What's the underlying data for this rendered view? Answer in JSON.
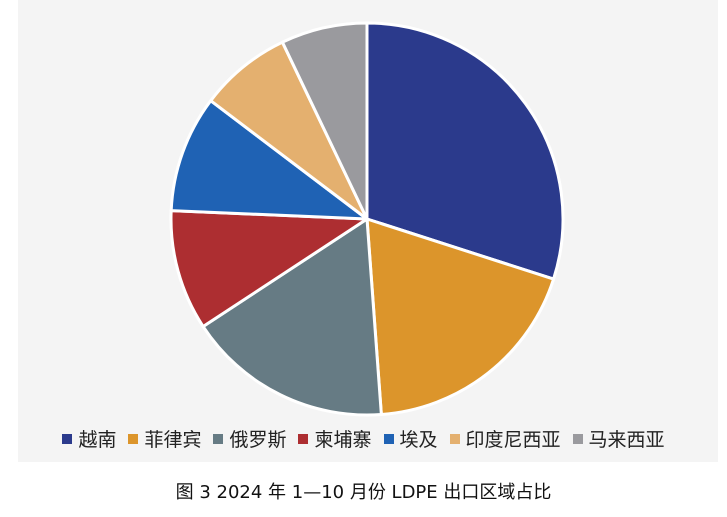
{
  "chart_data": {
    "type": "pie",
    "title": "图 3  2024 年 1—10 月份 LDPE 出口区域占比",
    "categories": [
      "越南",
      "菲律宾",
      "俄罗斯",
      "柬埔寨",
      "埃及",
      "印度尼西亚",
      "马来西亚"
    ],
    "values": [
      30.8,
      19.4,
      17.4,
      10.2,
      9.9,
      7.8,
      7.3
    ],
    "unit": "%",
    "colors": [
      "#2b3a8c",
      "#dc952b",
      "#667b84",
      "#ad2e31",
      "#1f62b4",
      "#e4b06f",
      "#9a9a9e"
    ],
    "legend": "bottom"
  }
}
